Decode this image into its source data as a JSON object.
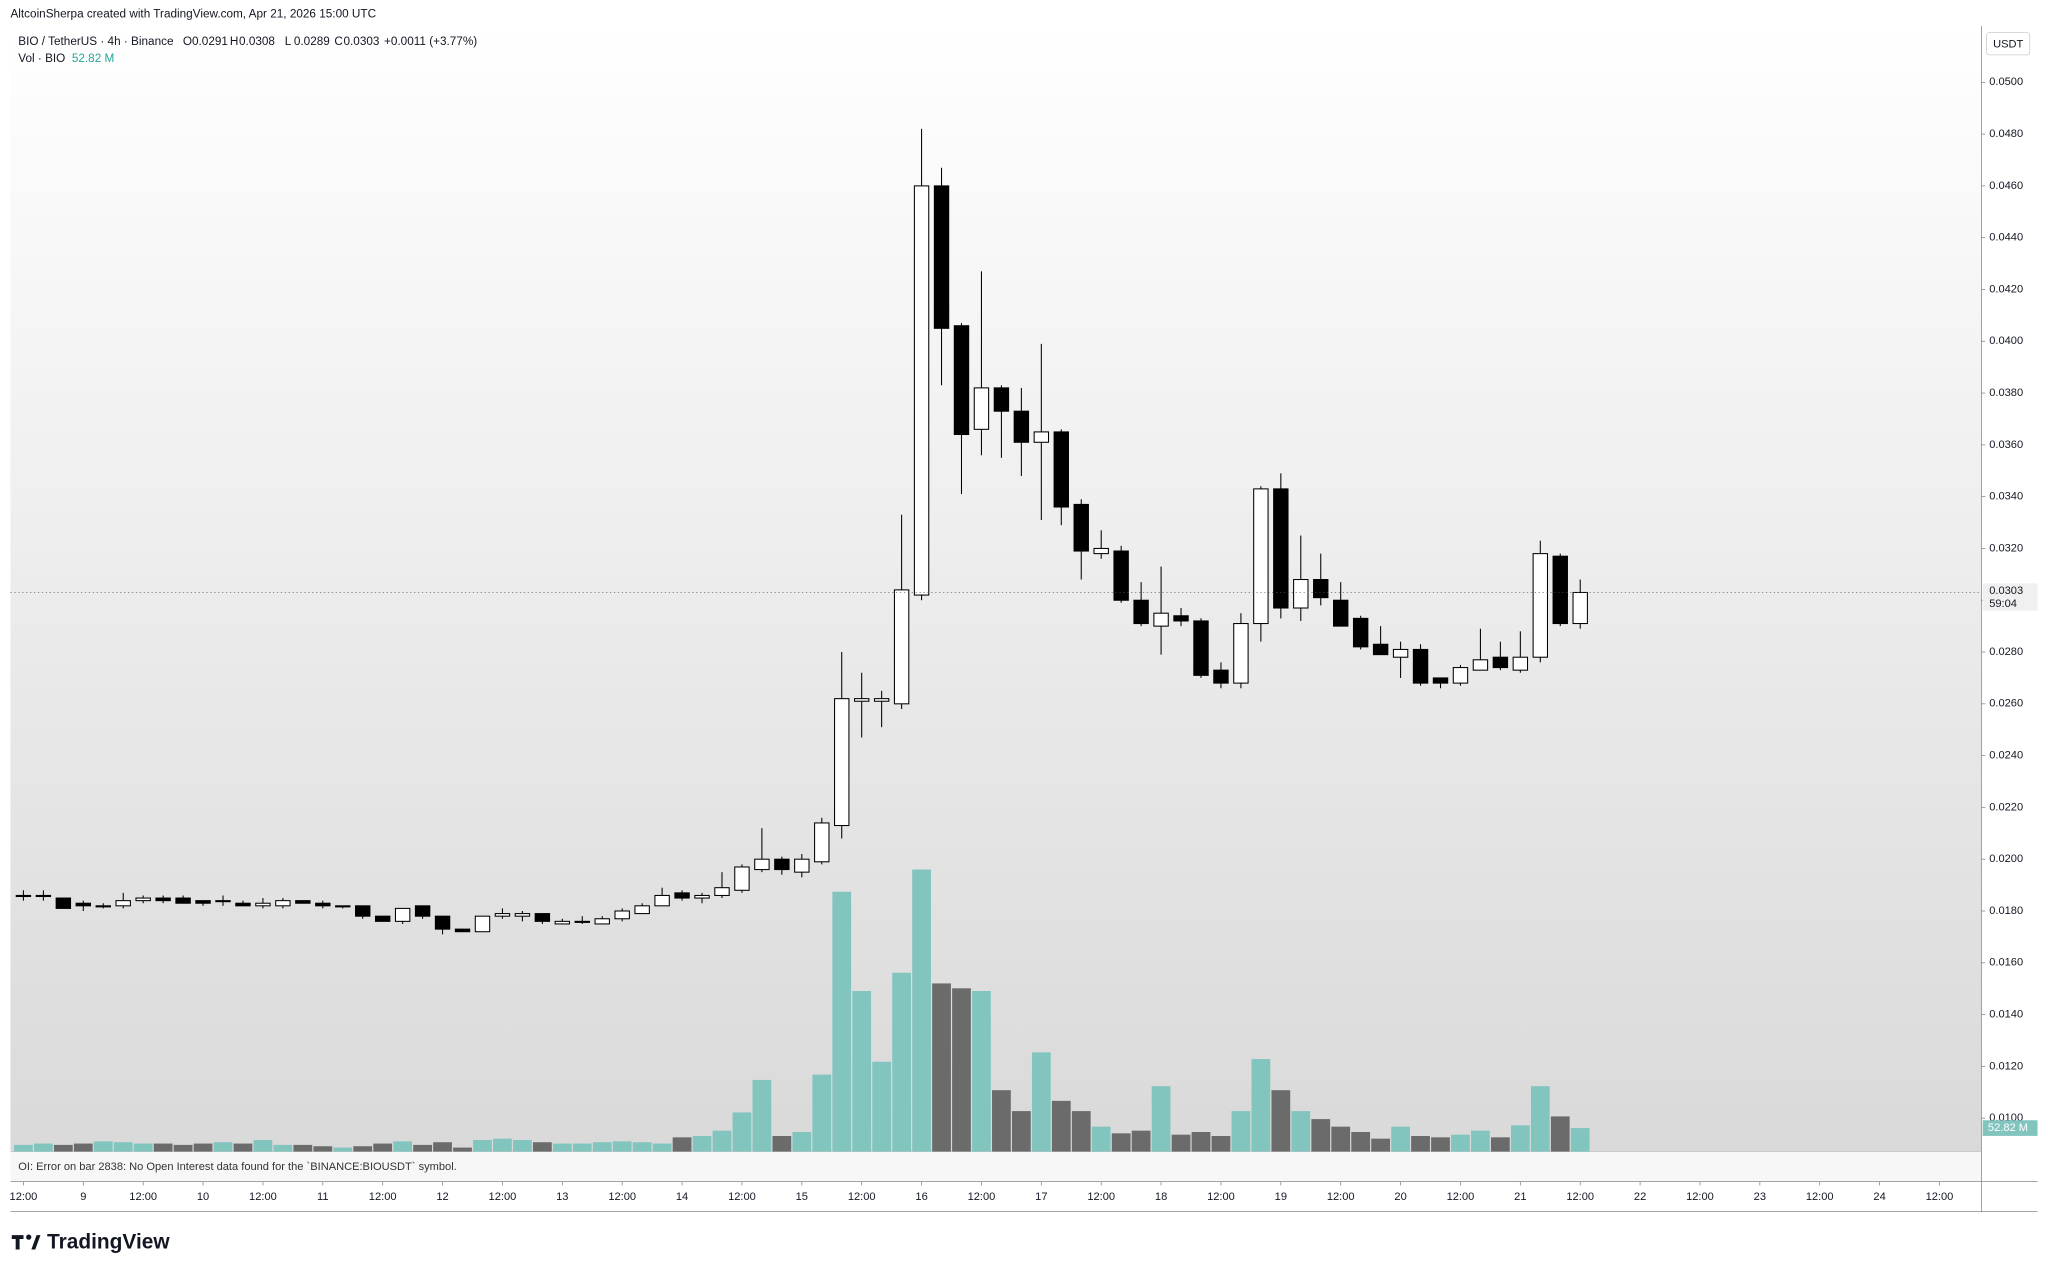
{
  "header": {
    "credit": "AltcoinSherpa created with TradingView.com, Apr 21, 2026 15:00 UTC",
    "symbol": "BIO / TetherUS · 4h · Binance",
    "ohlc": [
      {
        "key": "O",
        "value": "0.0291"
      },
      {
        "key": "H",
        "value": "0.0308"
      },
      {
        "key": "L",
        "value": "0.0289"
      },
      {
        "key": "C",
        "value": "0.0303"
      }
    ],
    "change": "+0.0011 (+3.77%)",
    "volume_title": "Vol · BIO",
    "volume_label": "52.82 M",
    "currency": "USDT",
    "last_price_label": "0.0303",
    "countdown": "59:04"
  },
  "error_message": "OI: Error on bar 2838: No Open Interest data found for the `BINANCE:BIOUSDT` symbol.",
  "logo": "TradingView",
  "chart_data": {
    "type": "candlestick",
    "open": [
      0.0186,
      0.0186,
      0.0185,
      0.0183,
      0.0182,
      0.0182,
      0.0184,
      0.0185,
      0.0185,
      0.0184,
      0.0184,
      0.0183,
      0.0182,
      0.0182,
      0.0184,
      0.0183,
      0.0182,
      0.0182,
      0.0178,
      0.0176,
      0.0182,
      0.0178,
      0.0173,
      0.0172,
      0.0178,
      0.0178,
      0.0179,
      0.0175,
      0.0176,
      0.0175,
      0.0177,
      0.0179,
      0.0182,
      0.0187,
      0.0185,
      0.0186,
      0.0188,
      0.0196,
      0.02,
      0.0195,
      0.0199,
      0.0213,
      0.0261,
      0.0261,
      0.026,
      0.0302,
      0.046,
      0.0406,
      0.0366,
      0.0382,
      0.0373,
      0.0361,
      0.0365,
      0.0337,
      0.0318,
      0.0319,
      0.03,
      0.029,
      0.0294,
      0.0292,
      0.0273,
      0.0268,
      0.0291,
      0.0343,
      0.0297,
      0.0308,
      0.03,
      0.0293,
      0.0283,
      0.0278,
      0.0281,
      0.027,
      0.0268,
      0.0273,
      0.0278,
      0.0273,
      0.0278,
      0.0317,
      0.0291
    ],
    "high": [
      0.0188,
      0.0188,
      0.0185,
      0.0184,
      0.0183,
      0.0187,
      0.0186,
      0.0186,
      0.0186,
      0.0184,
      0.0186,
      0.0184,
      0.0185,
      0.0185,
      0.0184,
      0.0184,
      0.0182,
      0.0182,
      0.0178,
      0.0181,
      0.0182,
      0.0178,
      0.0173,
      0.0178,
      0.0181,
      0.018,
      0.0179,
      0.0177,
      0.0178,
      0.0178,
      0.0181,
      0.0183,
      0.0189,
      0.0188,
      0.0187,
      0.0195,
      0.0198,
      0.0212,
      0.0201,
      0.0202,
      0.0216,
      0.028,
      0.0272,
      0.0265,
      0.0333,
      0.0482,
      0.0467,
      0.0407,
      0.0427,
      0.0383,
      0.0382,
      0.0399,
      0.0366,
      0.0339,
      0.0327,
      0.0321,
      0.0307,
      0.0313,
      0.0297,
      0.0293,
      0.0276,
      0.0295,
      0.0344,
      0.0349,
      0.0325,
      0.0318,
      0.0307,
      0.0294,
      0.029,
      0.0284,
      0.0283,
      0.027,
      0.0275,
      0.0289,
      0.0284,
      0.0288,
      0.0323,
      0.0318,
      0.0308
    ],
    "low": [
      0.0184,
      0.0184,
      0.0181,
      0.018,
      0.0181,
      0.0181,
      0.0183,
      0.0183,
      0.0183,
      0.0182,
      0.0182,
      0.0182,
      0.0181,
      0.0181,
      0.0183,
      0.0181,
      0.0181,
      0.0177,
      0.0176,
      0.0175,
      0.0177,
      0.0171,
      0.0172,
      0.0172,
      0.0177,
      0.0176,
      0.0175,
      0.0175,
      0.0175,
      0.0175,
      0.0176,
      0.0179,
      0.0182,
      0.0184,
      0.0183,
      0.0185,
      0.0187,
      0.0195,
      0.0194,
      0.0193,
      0.0198,
      0.0208,
      0.0247,
      0.0251,
      0.0258,
      0.03,
      0.0383,
      0.0341,
      0.0356,
      0.0355,
      0.0348,
      0.0331,
      0.0329,
      0.0308,
      0.0316,
      0.0299,
      0.029,
      0.0279,
      0.029,
      0.027,
      0.0266,
      0.0266,
      0.0284,
      0.0293,
      0.0292,
      0.0298,
      0.029,
      0.0281,
      0.0279,
      0.027,
      0.0267,
      0.0266,
      0.0267,
      0.0273,
      0.0273,
      0.0272,
      0.0276,
      0.029,
      0.0289
    ],
    "close": [
      0.0186,
      0.0186,
      0.0181,
      0.0182,
      0.0182,
      0.0184,
      0.0185,
      0.0184,
      0.0183,
      0.0183,
      0.0184,
      0.0182,
      0.0183,
      0.0184,
      0.0183,
      0.0182,
      0.0182,
      0.0178,
      0.0176,
      0.0181,
      0.0178,
      0.0173,
      0.0172,
      0.0178,
      0.0179,
      0.0179,
      0.0176,
      0.0176,
      0.0176,
      0.0177,
      0.018,
      0.0182,
      0.0186,
      0.0185,
      0.0186,
      0.0189,
      0.0197,
      0.02,
      0.0196,
      0.02,
      0.0214,
      0.0262,
      0.0262,
      0.0262,
      0.0304,
      0.046,
      0.0405,
      0.0364,
      0.0382,
      0.0373,
      0.0361,
      0.0365,
      0.0336,
      0.0319,
      0.032,
      0.03,
      0.0291,
      0.0295,
      0.0292,
      0.0271,
      0.0268,
      0.0291,
      0.0343,
      0.0297,
      0.0308,
      0.0301,
      0.029,
      0.0282,
      0.0279,
      0.0281,
      0.0268,
      0.0268,
      0.0274,
      0.0277,
      0.0274,
      0.0278,
      0.0318,
      0.0291,
      0.0303
    ],
    "volume": [
      15,
      18,
      15,
      18,
      23,
      21,
      18,
      18,
      15,
      18,
      21,
      18,
      26,
      15,
      15,
      12,
      9,
      12,
      18,
      23,
      15,
      21,
      9,
      26,
      29,
      26,
      21,
      18,
      18,
      21,
      23,
      21,
      18,
      32,
      35,
      47,
      88,
      161,
      35,
      44,
      173,
      584,
      361,
      202,
      402,
      634,
      378,
      367,
      361,
      138,
      91,
      223,
      114,
      91,
      56,
      41,
      47,
      147,
      38,
      44,
      35,
      91,
      208,
      138,
      91,
      73,
      56,
      44,
      29,
      56,
      35,
      32,
      38,
      47,
      32,
      59,
      147,
      79,
      52.82
    ],
    "up_color": "#ffffff",
    "down_color": "#000000",
    "up_volume_color": "#82c5bf",
    "down_volume_color": "#6b6b6b",
    "ylim": [
      0.00871,
      0.05217
    ],
    "volume_ylim": [
      0,
      2530
    ],
    "yticks": [
      {
        "value": 0.01,
        "label": "0.0100"
      },
      {
        "value": 0.012,
        "label": "0.0120"
      },
      {
        "value": 0.014,
        "label": "0.0140"
      },
      {
        "value": 0.016,
        "label": "0.0160"
      },
      {
        "value": 0.018,
        "label": "0.0180"
      },
      {
        "value": 0.02,
        "label": "0.0200"
      },
      {
        "value": 0.022,
        "label": "0.0220"
      },
      {
        "value": 0.024,
        "label": "0.0240"
      },
      {
        "value": 0.026,
        "label": "0.0260"
      },
      {
        "value": 0.028,
        "label": "0.0280"
      },
      {
        "value": 0.03,
        "label": "0.0300"
      },
      {
        "value": 0.032,
        "label": "0.0320"
      },
      {
        "value": 0.034,
        "label": "0.0340"
      },
      {
        "value": 0.036,
        "label": "0.0360"
      },
      {
        "value": 0.038,
        "label": "0.0380"
      },
      {
        "value": 0.04,
        "label": "0.0400"
      },
      {
        "value": 0.042,
        "label": "0.0420"
      },
      {
        "value": 0.044,
        "label": "0.0440"
      },
      {
        "value": 0.046,
        "label": "0.0460"
      },
      {
        "value": 0.048,
        "label": "0.0480"
      },
      {
        "value": 0.05,
        "label": "0.0500"
      }
    ],
    "xlim": [
      -0.65,
      98.1
    ],
    "xticks": [
      {
        "value": 0,
        "label": "12:00"
      },
      {
        "value": 3,
        "label": "9"
      },
      {
        "value": 6,
        "label": "12:00"
      },
      {
        "value": 9,
        "label": "10"
      },
      {
        "value": 12,
        "label": "12:00"
      },
      {
        "value": 15,
        "label": "11"
      },
      {
        "value": 18,
        "label": "12:00"
      },
      {
        "value": 21,
        "label": "12"
      },
      {
        "value": 24,
        "label": "12:00"
      },
      {
        "value": 27,
        "label": "13"
      },
      {
        "value": 30,
        "label": "12:00"
      },
      {
        "value": 33,
        "label": "14"
      },
      {
        "value": 36,
        "label": "12:00"
      },
      {
        "value": 39,
        "label": "15"
      },
      {
        "value": 42,
        "label": "12:00"
      },
      {
        "value": 45,
        "label": "16"
      },
      {
        "value": 48,
        "label": "12:00"
      },
      {
        "value": 51,
        "label": "17"
      },
      {
        "value": 54,
        "label": "12:00"
      },
      {
        "value": 57,
        "label": "18"
      },
      {
        "value": 60,
        "label": "12:00"
      },
      {
        "value": 63,
        "label": "19"
      },
      {
        "value": 66,
        "label": "12:00"
      },
      {
        "value": 69,
        "label": "20"
      },
      {
        "value": 72,
        "label": "12:00"
      },
      {
        "value": 75,
        "label": "21"
      },
      {
        "value": 78,
        "label": "12:00"
      },
      {
        "value": 81,
        "label": "22"
      },
      {
        "value": 84,
        "label": "12:00"
      },
      {
        "value": 87,
        "label": "23"
      },
      {
        "value": 90,
        "label": "12:00"
      },
      {
        "value": 93,
        "label": "24"
      },
      {
        "value": 96,
        "label": "12:00"
      }
    ]
  }
}
